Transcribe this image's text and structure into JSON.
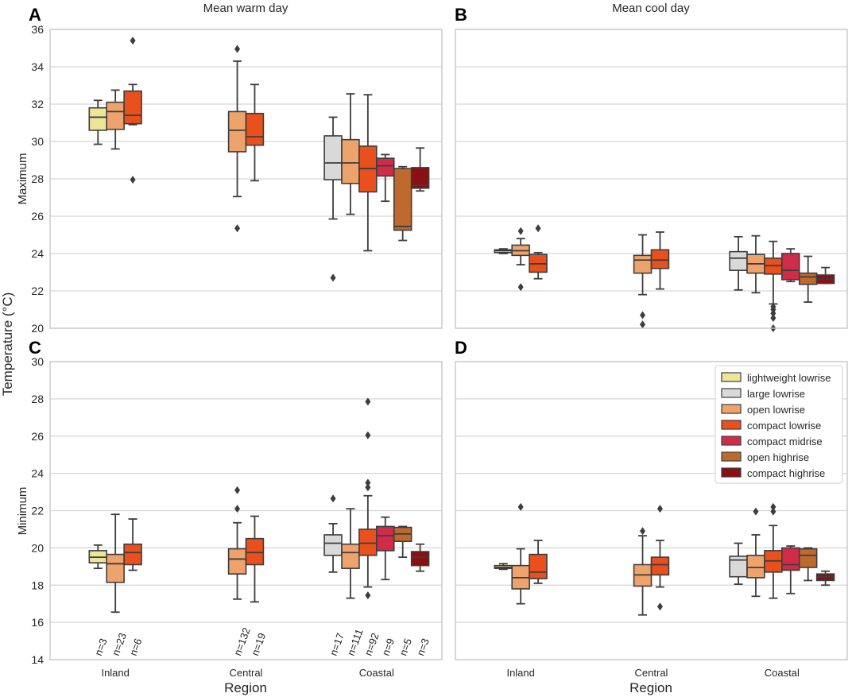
{
  "figure": {
    "y_label": "Temperature (°C)",
    "x_label": "Region",
    "col_titles": [
      "Mean warm day",
      "Mean cool day"
    ],
    "row_labels": [
      "Maximum",
      "Minimum"
    ],
    "panel_letters": [
      "A",
      "B",
      "C",
      "D"
    ]
  },
  "chart_data": {
    "type": "boxplot",
    "regions": [
      "Inland",
      "Central",
      "Coastal"
    ],
    "categories": [
      "lightweight lowrise",
      "large lowrise",
      "open lowrise",
      "compact lowrise",
      "compact midrise",
      "open highrise",
      "compact highrise"
    ],
    "colors": {
      "lightweight lowrise": "#ede69a",
      "large lowrise": "#d9d9d9",
      "open lowrise": "#eda36b",
      "compact lowrise": "#e8501d",
      "compact midrise": "#d12b4a",
      "open highrise": "#bf6a2d",
      "compact highrise": "#8c0f11"
    },
    "counts": {
      "Inland": [
        "n=3",
        "n=23",
        "n=6"
      ],
      "Central": [
        "n=132",
        "n=19"
      ],
      "Coastal": [
        "n=17",
        "n=111",
        "n=92",
        "n=9",
        "n=5",
        "n=3"
      ]
    },
    "panels": [
      {
        "id": "A",
        "title": "Mean warm day",
        "ylabel": "Maximum",
        "ylim": [
          20,
          36
        ],
        "yticks": [
          20,
          22,
          24,
          26,
          28,
          30,
          32,
          34,
          36
        ],
        "groups": [
          {
            "region": "Inland",
            "boxes": [
              {
                "cat": "lightweight lowrise",
                "whislo": 29.85,
                "q1": 30.6,
                "med": 31.3,
                "q3": 31.8,
                "whishi": 32.2,
                "fliers": []
              },
              {
                "cat": "open lowrise",
                "whislo": 29.6,
                "q1": 30.65,
                "med": 31.6,
                "q3": 32.1,
                "whishi": 32.75,
                "fliers": []
              },
              {
                "cat": "compact lowrise",
                "whislo": 30.9,
                "q1": 30.95,
                "med": 31.4,
                "q3": 32.7,
                "whishi": 33.05,
                "fliers": [
                  35.4,
                  27.95
                ]
              }
            ]
          },
          {
            "region": "Central",
            "boxes": [
              {
                "cat": "open lowrise",
                "whislo": 27.05,
                "q1": 29.45,
                "med": 30.6,
                "q3": 31.6,
                "whishi": 34.3,
                "fliers": [
                  34.95,
                  25.35
                ]
              },
              {
                "cat": "compact lowrise",
                "whislo": 27.9,
                "q1": 29.8,
                "med": 30.25,
                "q3": 31.5,
                "whishi": 33.05,
                "fliers": []
              }
            ]
          },
          {
            "region": "Coastal",
            "boxes": [
              {
                "cat": "large lowrise",
                "whislo": 25.85,
                "q1": 27.95,
                "med": 28.85,
                "q3": 30.3,
                "whishi": 31.3,
                "fliers": [
                  22.7
                ]
              },
              {
                "cat": "open lowrise",
                "whislo": 26.1,
                "q1": 27.75,
                "med": 28.85,
                "q3": 30.1,
                "whishi": 32.55,
                "fliers": []
              },
              {
                "cat": "compact lowrise",
                "whislo": 24.15,
                "q1": 27.3,
                "med": 28.55,
                "q3": 29.75,
                "whishi": 32.5,
                "fliers": []
              },
              {
                "cat": "compact midrise",
                "whislo": 26.8,
                "q1": 28.15,
                "med": 28.7,
                "q3": 29.1,
                "whishi": 29.3,
                "fliers": []
              },
              {
                "cat": "open highrise",
                "whislo": 24.7,
                "q1": 25.25,
                "med": 25.45,
                "q3": 28.55,
                "whishi": 28.65,
                "fliers": []
              },
              {
                "cat": "compact highrise",
                "whislo": 27.35,
                "q1": 27.5,
                "med": 27.65,
                "q3": 28.6,
                "whishi": 29.65,
                "fliers": []
              }
            ]
          }
        ]
      },
      {
        "id": "B",
        "title": "Mean cool day",
        "ylabel": "",
        "ylim": [
          20,
          36
        ],
        "yticks": [
          20,
          22,
          24,
          26,
          28,
          30,
          32,
          34,
          36
        ],
        "groups": [
          {
            "region": "Inland",
            "boxes": [
              {
                "cat": "lightweight lowrise",
                "whislo": 24.0,
                "q1": 24.05,
                "med": 24.15,
                "q3": 24.2,
                "whishi": 24.25,
                "fliers": []
              },
              {
                "cat": "open lowrise",
                "whislo": 23.4,
                "q1": 23.9,
                "med": 24.15,
                "q3": 24.45,
                "whishi": 24.8,
                "fliers": [
                  25.2,
                  22.2
                ]
              },
              {
                "cat": "compact lowrise",
                "whislo": 22.65,
                "q1": 23.0,
                "med": 23.45,
                "q3": 23.95,
                "whishi": 24.05,
                "fliers": [
                  25.35
                ]
              }
            ]
          },
          {
            "region": "Central",
            "boxes": [
              {
                "cat": "open lowrise",
                "whislo": 21.8,
                "q1": 22.95,
                "med": 23.65,
                "q3": 23.9,
                "whishi": 25.0,
                "fliers": [
                  20.7,
                  20.2
                ]
              },
              {
                "cat": "compact lowrise",
                "whislo": 22.1,
                "q1": 23.2,
                "med": 23.65,
                "q3": 24.2,
                "whishi": 25.15,
                "fliers": []
              }
            ]
          },
          {
            "region": "Coastal",
            "boxes": [
              {
                "cat": "large lowrise",
                "whislo": 22.05,
                "q1": 23.1,
                "med": 23.75,
                "q3": 24.1,
                "whishi": 24.9,
                "fliers": []
              },
              {
                "cat": "open lowrise",
                "whislo": 21.9,
                "q1": 22.95,
                "med": 23.45,
                "q3": 23.95,
                "whishi": 24.95,
                "fliers": []
              },
              {
                "cat": "compact lowrise",
                "whislo": 21.3,
                "q1": 22.9,
                "med": 23.35,
                "q3": 23.75,
                "whishi": 24.65,
                "fliers": [
                  21.15,
                  21.0,
                  20.8,
                  20.55,
                  20.0
                ]
              },
              {
                "cat": "compact midrise",
                "whislo": 22.5,
                "q1": 22.6,
                "med": 23.1,
                "q3": 24.0,
                "whishi": 24.25,
                "fliers": []
              },
              {
                "cat": "open highrise",
                "whislo": 21.4,
                "q1": 22.35,
                "med": 22.75,
                "q3": 22.95,
                "whishi": 23.85,
                "fliers": []
              },
              {
                "cat": "compact highrise",
                "whislo": 22.4,
                "q1": 22.4,
                "med": 22.65,
                "q3": 22.85,
                "whishi": 23.25,
                "fliers": []
              }
            ]
          }
        ]
      },
      {
        "id": "C",
        "title": "",
        "ylabel": "Minimum",
        "ylim": [
          14,
          30
        ],
        "yticks": [
          14,
          16,
          18,
          20,
          22,
          24,
          26,
          28,
          30
        ],
        "groups": [
          {
            "region": "Inland",
            "boxes": [
              {
                "cat": "lightweight lowrise",
                "whislo": 18.9,
                "q1": 19.2,
                "med": 19.5,
                "q3": 19.85,
                "whishi": 20.15,
                "fliers": []
              },
              {
                "cat": "open lowrise",
                "whislo": 16.55,
                "q1": 18.15,
                "med": 19.15,
                "q3": 19.65,
                "whishi": 21.8,
                "fliers": []
              },
              {
                "cat": "compact lowrise",
                "whislo": 18.8,
                "q1": 19.1,
                "med": 19.75,
                "q3": 20.2,
                "whishi": 21.55,
                "fliers": []
              }
            ]
          },
          {
            "region": "Central",
            "boxes": [
              {
                "cat": "open lowrise",
                "whislo": 17.25,
                "q1": 18.6,
                "med": 19.4,
                "q3": 19.95,
                "whishi": 21.35,
                "fliers": [
                  23.1,
                  22.1
                ]
              },
              {
                "cat": "compact lowrise",
                "whislo": 17.1,
                "q1": 19.1,
                "med": 19.75,
                "q3": 20.5,
                "whishi": 21.7,
                "fliers": []
              }
            ]
          },
          {
            "region": "Coastal",
            "boxes": [
              {
                "cat": "large lowrise",
                "whislo": 18.7,
                "q1": 19.6,
                "med": 20.25,
                "q3": 20.7,
                "whishi": 21.3,
                "fliers": [
                  22.65
                ]
              },
              {
                "cat": "open lowrise",
                "whislo": 17.3,
                "q1": 18.9,
                "med": 19.75,
                "q3": 20.2,
                "whishi": 22.1,
                "fliers": []
              },
              {
                "cat": "compact lowrise",
                "whislo": 17.9,
                "q1": 19.6,
                "med": 20.25,
                "q3": 21.0,
                "whishi": 22.8,
                "fliers": [
                  27.85,
                  26.05,
                  23.5,
                  23.25,
                  17.45
                ]
              },
              {
                "cat": "compact midrise",
                "whislo": 18.3,
                "q1": 19.85,
                "med": 20.65,
                "q3": 21.15,
                "whishi": 21.65,
                "fliers": []
              },
              {
                "cat": "open highrise",
                "whislo": 19.5,
                "q1": 20.35,
                "med": 20.75,
                "q3": 21.1,
                "whishi": 21.15,
                "fliers": []
              },
              {
                "cat": "compact highrise",
                "whislo": 18.75,
                "q1": 19.05,
                "med": 19.5,
                "q3": 19.8,
                "whishi": 20.2,
                "fliers": []
              }
            ]
          }
        ]
      },
      {
        "id": "D",
        "title": "",
        "ylabel": "",
        "ylim": [
          14,
          30
        ],
        "yticks": [
          14,
          16,
          18,
          20,
          22,
          24,
          26,
          28,
          30
        ],
        "groups": [
          {
            "region": "Inland",
            "boxes": [
              {
                "cat": "lightweight lowrise",
                "whislo": 18.85,
                "q1": 18.9,
                "med": 18.95,
                "q3": 19.05,
                "whishi": 19.15,
                "fliers": []
              },
              {
                "cat": "open lowrise",
                "whislo": 17.0,
                "q1": 17.8,
                "med": 18.4,
                "q3": 19.05,
                "whishi": 19.95,
                "fliers": [
                  22.2
                ]
              },
              {
                "cat": "compact lowrise",
                "whislo": 18.1,
                "q1": 18.35,
                "med": 18.7,
                "q3": 19.65,
                "whishi": 20.4,
                "fliers": []
              }
            ]
          },
          {
            "region": "Central",
            "boxes": [
              {
                "cat": "open lowrise",
                "whislo": 16.4,
                "q1": 17.95,
                "med": 18.55,
                "q3": 19.1,
                "whishi": 20.65,
                "fliers": [
                  20.9
                ]
              },
              {
                "cat": "compact lowrise",
                "whislo": 17.9,
                "q1": 18.55,
                "med": 19.1,
                "q3": 19.5,
                "whishi": 20.4,
                "fliers": [
                  22.1,
                  16.85
                ]
              }
            ]
          },
          {
            "region": "Coastal",
            "boxes": [
              {
                "cat": "large lowrise",
                "whislo": 18.05,
                "q1": 18.45,
                "med": 19.35,
                "q3": 19.55,
                "whishi": 20.25,
                "fliers": []
              },
              {
                "cat": "open lowrise",
                "whislo": 17.4,
                "q1": 18.4,
                "med": 18.95,
                "q3": 19.6,
                "whishi": 20.7,
                "fliers": [
                  21.95
                ]
              },
              {
                "cat": "compact lowrise",
                "whislo": 17.3,
                "q1": 18.7,
                "med": 19.3,
                "q3": 19.85,
                "whishi": 21.2,
                "fliers": [
                  22.2,
                  21.95
                ]
              },
              {
                "cat": "compact midrise",
                "whislo": 17.55,
                "q1": 18.8,
                "med": 19.1,
                "q3": 20.0,
                "whishi": 20.1,
                "fliers": []
              },
              {
                "cat": "open highrise",
                "whislo": 18.25,
                "q1": 18.95,
                "med": 19.6,
                "q3": 19.95,
                "whishi": 20.0,
                "fliers": []
              },
              {
                "cat": "compact highrise",
                "whislo": 18.0,
                "q1": 18.25,
                "med": 18.45,
                "q3": 18.6,
                "whishi": 18.75,
                "fliers": []
              }
            ]
          }
        ]
      }
    ]
  }
}
